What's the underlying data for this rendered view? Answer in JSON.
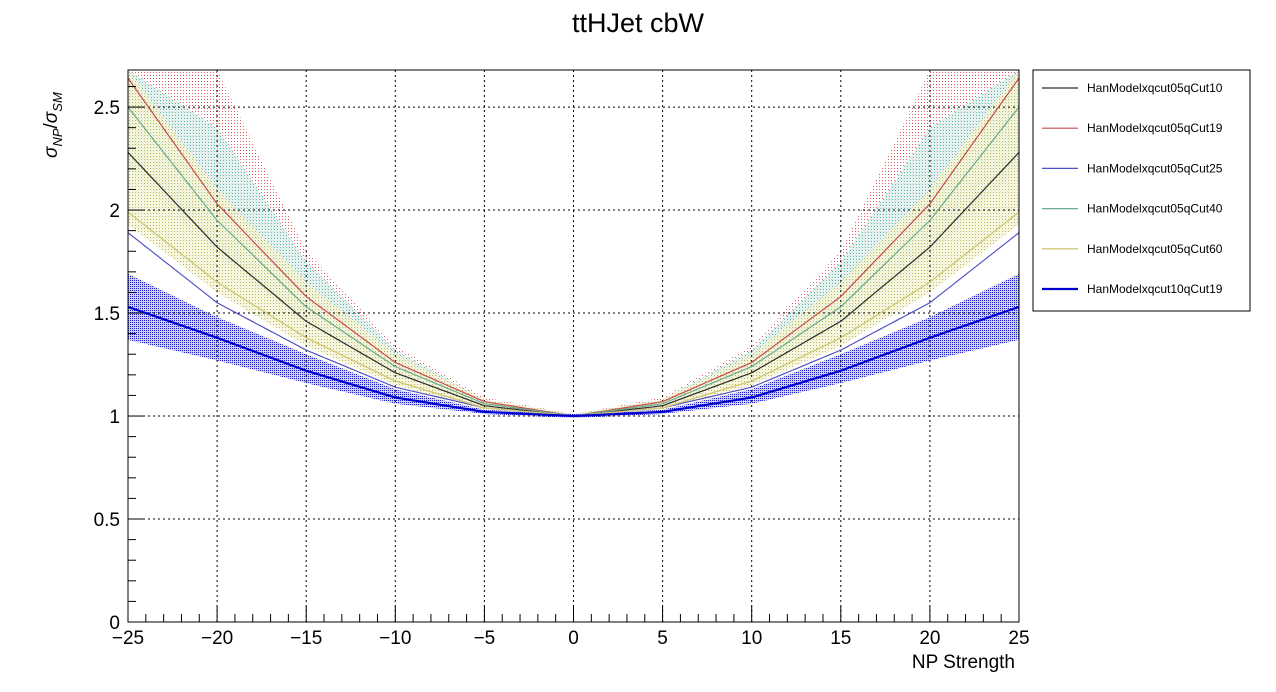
{
  "chart_data": {
    "type": "line",
    "title": "ttHJet cbW",
    "xlabel": "NP Strength",
    "ylabel": "σ_NP/σ_SM",
    "xlim": [
      -25,
      25
    ],
    "ylim": [
      0,
      2.68
    ],
    "x_ticks": [
      -25,
      -20,
      -15,
      -10,
      -5,
      0,
      5,
      10,
      15,
      20,
      25
    ],
    "x_tick_labels": [
      "−25",
      "−20",
      "−15",
      "−10",
      "−5",
      "0",
      "5",
      "10",
      "15",
      "20",
      "25"
    ],
    "y_ticks": [
      0,
      0.5,
      1,
      1.5,
      2,
      2.5
    ],
    "y_tick_labels": [
      "0",
      "0.5",
      "1",
      "1.5",
      "2",
      "2.5"
    ],
    "grid": true,
    "legend_position": "right",
    "x": [
      -25,
      -20,
      -15,
      -10,
      -5,
      0,
      5,
      10,
      15,
      20,
      25
    ],
    "series": [
      {
        "name": "HanModelxqcut05qCut10",
        "color": "#2b2b2b",
        "width": 1.2,
        "values": [
          2.28,
          1.82,
          1.46,
          1.21,
          1.05,
          1.0,
          1.05,
          1.21,
          1.46,
          1.82,
          2.28
        ],
        "band": {
          "color": "#d9d9a6",
          "lower": [
            1.93,
            1.6,
            1.34,
            1.15,
            1.03,
            0.99,
            1.03,
            1.15,
            1.34,
            1.6,
            1.93
          ],
          "upper": [
            2.68,
            2.1,
            1.65,
            1.3,
            1.08,
            1.01,
            1.08,
            1.3,
            1.65,
            2.1,
            2.68
          ]
        }
      },
      {
        "name": "HanModelxqcut05qCut19",
        "color": "#c94b4b",
        "width": 1.2,
        "values": [
          2.64,
          2.03,
          1.58,
          1.26,
          1.07,
          1.0,
          1.07,
          1.26,
          1.58,
          2.03,
          2.64
        ],
        "band": {
          "color": "#e8a0a6",
          "lower": [
            2.42,
            1.9,
            1.51,
            1.23,
            1.06,
            0.99,
            1.06,
            1.23,
            1.51,
            1.9,
            2.42
          ],
          "upper": [
            2.68,
            2.68,
            1.8,
            1.34,
            1.09,
            1.01,
            1.09,
            1.34,
            1.8,
            2.68,
            2.68
          ]
        }
      },
      {
        "name": "HanModelxqcut05qCut25",
        "color": "#5050c8",
        "width": 1.2,
        "values": [
          1.89,
          1.55,
          1.32,
          1.14,
          1.04,
          1.0,
          1.04,
          1.14,
          1.32,
          1.55,
          1.89
        ],
        "band": null
      },
      {
        "name": "HanModelxqcut05qCut40",
        "color": "#6aab8c",
        "width": 1.2,
        "values": [
          2.5,
          1.95,
          1.53,
          1.24,
          1.06,
          1.0,
          1.06,
          1.24,
          1.53,
          1.95,
          2.5
        ],
        "band": {
          "color": "#a6d6cc",
          "lower": [
            2.2,
            1.78,
            1.45,
            1.21,
            1.05,
            0.99,
            1.05,
            1.21,
            1.45,
            1.78,
            2.2
          ],
          "upper": [
            2.68,
            2.4,
            1.75,
            1.32,
            1.08,
            1.01,
            1.08,
            1.32,
            1.75,
            2.4,
            2.68
          ]
        }
      },
      {
        "name": "HanModelxqcut05qCut60",
        "color": "#d2c97a",
        "width": 1.4,
        "values": [
          1.99,
          1.65,
          1.38,
          1.17,
          1.04,
          1.0,
          1.04,
          1.17,
          1.38,
          1.65,
          1.99
        ],
        "band": null
      },
      {
        "name": "HanModelxqcut10qCut19",
        "color": "#0000cc",
        "width": 2.2,
        "values": [
          1.53,
          1.38,
          1.22,
          1.09,
          1.02,
          1.0,
          1.02,
          1.09,
          1.22,
          1.38,
          1.53
        ],
        "band": {
          "color": "#3b3bd9",
          "lower": [
            1.37,
            1.27,
            1.16,
            1.06,
            1.01,
            0.99,
            1.01,
            1.06,
            1.16,
            1.27,
            1.37
          ],
          "upper": [
            1.69,
            1.48,
            1.3,
            1.13,
            1.03,
            1.01,
            1.03,
            1.13,
            1.3,
            1.48,
            1.69
          ]
        }
      }
    ]
  }
}
